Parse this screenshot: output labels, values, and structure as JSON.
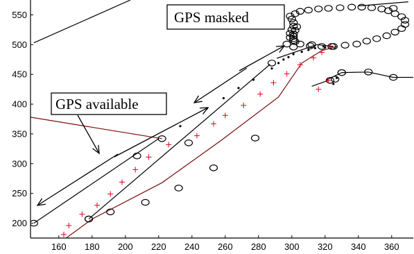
{
  "chart_data": {
    "type": "scatter",
    "title": "",
    "xlabel": "",
    "ylabel": "",
    "xlim": [
      143,
      373
    ],
    "ylim": [
      175,
      575
    ],
    "xticks": [
      160,
      180,
      200,
      220,
      240,
      260,
      280,
      300,
      320,
      340,
      360
    ],
    "yticks": [
      200,
      250,
      300,
      350,
      400,
      450,
      500,
      550
    ],
    "grid": false,
    "legend": null,
    "colors": {
      "black": "#000000",
      "red": "#e8112d",
      "darkred": "#7a0b0b"
    },
    "series": [
      {
        "marker": "circle",
        "color": "#000000",
        "points": [
          [
            145,
            200
          ],
          [
            178,
            207
          ],
          [
            207,
            313
          ],
          [
            222,
            342
          ],
          [
            238,
            335
          ],
          [
            288,
            469
          ],
          [
            301,
            496
          ],
          [
            312,
            500
          ],
          [
            324,
            497
          ],
          [
            323,
            440
          ],
          [
            326,
            442
          ],
          [
            330,
            453
          ]
        ]
      },
      {
        "marker": "circle",
        "color": "#000000",
        "points": [
          [
            178,
            207
          ],
          [
            191,
            219
          ],
          [
            212,
            235
          ],
          [
            232,
            259
          ],
          [
            253,
            293
          ],
          [
            278,
            343
          ],
          [
            330,
            453
          ],
          [
            346,
            454
          ],
          [
            361,
            445
          ]
        ]
      },
      {
        "marker": "circle",
        "color": "#000000",
        "points": [
          [
            302,
            552
          ],
          [
            305,
            556
          ],
          [
            310,
            558
          ],
          [
            316,
            560
          ],
          [
            322,
            561
          ],
          [
            329,
            562
          ],
          [
            336,
            563
          ],
          [
            342,
            563
          ],
          [
            348,
            562
          ],
          [
            354,
            560
          ],
          [
            358,
            557
          ],
          [
            362,
            552
          ],
          [
            366,
            547
          ],
          [
            368,
            541
          ],
          [
            368,
            534
          ],
          [
            366,
            527
          ],
          [
            362,
            521
          ],
          [
            357,
            515
          ],
          [
            351,
            510
          ],
          [
            345,
            506
          ],
          [
            339,
            501
          ],
          [
            332,
            499
          ],
          [
            325,
            497
          ],
          [
            318,
            497
          ],
          [
            311,
            498
          ],
          [
            305,
            501
          ],
          [
            301,
            507
          ],
          [
            299,
            512
          ],
          [
            299,
            519
          ],
          [
            300,
            525
          ],
          [
            301,
            531
          ],
          [
            301,
            537
          ],
          [
            300,
            543
          ],
          [
            299,
            548
          ],
          [
            302,
            524
          ],
          [
            303,
            530
          ],
          [
            301,
            518
          ],
          [
            301,
            514
          ],
          [
            301,
            510
          ],
          [
            302,
            505
          ],
          [
            297,
            501
          ],
          [
            361,
            561
          ]
        ]
      },
      {
        "marker": "plus",
        "color": "#e8112d",
        "points": [
          [
            163,
            181
          ],
          [
            166,
            196
          ],
          [
            174,
            215
          ],
          [
            183,
            230
          ],
          [
            191,
            249
          ],
          [
            198,
            269
          ],
          [
            206,
            290
          ],
          [
            214,
            311
          ],
          [
            226,
            332
          ],
          [
            243,
            347
          ],
          [
            253,
            367
          ],
          [
            260,
            381
          ],
          [
            271,
            398
          ],
          [
            281,
            417
          ],
          [
            289,
            436
          ],
          [
            297,
            451
          ],
          [
            305,
            466
          ],
          [
            313,
            478
          ],
          [
            318,
            487
          ],
          [
            323,
            496
          ],
          [
            316,
            425
          ],
          [
            322,
            440
          ]
        ]
      },
      {
        "marker": "dot",
        "color": "#000000",
        "points": [
          [
            233,
            363
          ],
          [
            249,
            393
          ],
          [
            259,
            410
          ],
          [
            268,
            427
          ],
          [
            277,
            441
          ],
          [
            288,
            460
          ],
          [
            292,
            469
          ],
          [
            295,
            475
          ],
          [
            298,
            479
          ],
          [
            301,
            484
          ],
          [
            306,
            488
          ],
          [
            310,
            491
          ],
          [
            314,
            494
          ],
          [
            319,
            497
          ],
          [
            320,
            495
          ],
          [
            325,
            434
          ],
          [
            327,
            444
          ]
        ]
      }
    ],
    "lines": [
      {
        "color": "#000000",
        "points": [
          [
            145,
            200
          ],
          [
            220,
            342
          ]
        ]
      },
      {
        "color": "#000000",
        "points": [
          [
            178,
            207
          ],
          [
            287,
            467
          ]
        ]
      },
      {
        "color": "#000000",
        "points": [
          [
            291,
            477
          ],
          [
            315,
            500
          ],
          [
            325,
            497
          ]
        ]
      },
      {
        "color": "#7a0b0b",
        "points": [
          [
            162,
            170
          ],
          [
            180,
            207
          ],
          [
            222,
            268
          ],
          [
            258,
            340
          ],
          [
            292,
            412
          ],
          [
            306,
            469
          ],
          [
            318,
            490
          ],
          [
            327,
            497
          ]
        ]
      },
      {
        "color": "#000000",
        "points": [
          [
            321,
            441
          ],
          [
            330,
            453
          ],
          [
            346,
            454
          ],
          [
            361,
            445
          ],
          [
            373,
            445
          ]
        ]
      },
      {
        "color": "#000000",
        "points": [
          [
            312,
            430
          ],
          [
            322,
            440
          ]
        ]
      },
      {
        "color": "#000000",
        "points": [
          [
            145,
            503
          ],
          [
            203,
            575
          ]
        ]
      },
      {
        "color": "#000000",
        "points": [
          [
            340,
            565
          ],
          [
            370,
            572
          ]
        ]
      },
      {
        "color": "#7a0b0b",
        "points": [
          [
            143,
            378
          ],
          [
            222,
            342
          ]
        ]
      }
    ],
    "annotations": [
      {
        "label": "GPS masked"
      },
      {
        "label": "GPS available"
      }
    ]
  }
}
